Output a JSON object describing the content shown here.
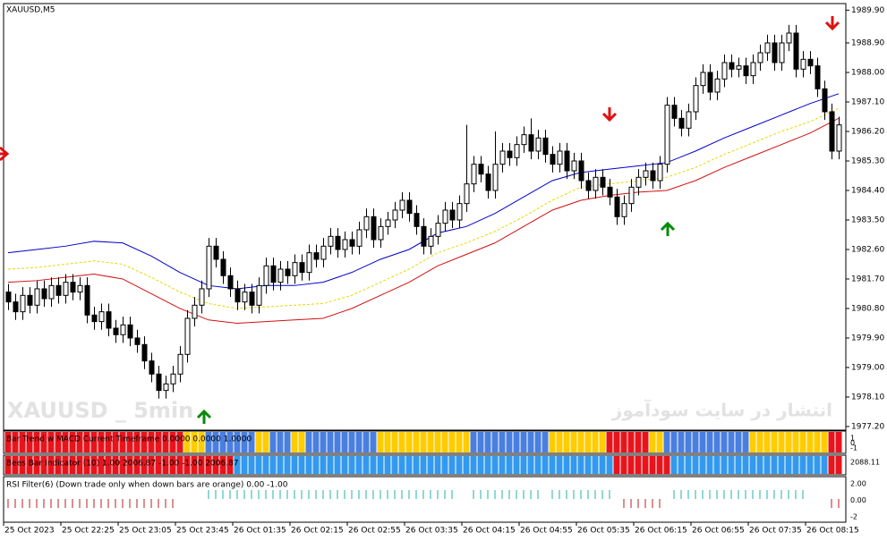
{
  "chart_data": {
    "type": "candlestick",
    "title": "XAUUSD,M5",
    "watermarks": [
      "XAUUSD _ 5min",
      "انتشار در سایت سودآموز"
    ],
    "ylim": [
      1977.09,
      1990.1
    ],
    "yticks": [
      {
        "value": 1989.9,
        "label": "1989.90"
      },
      {
        "value": 1988.9,
        "label": "1988.90"
      },
      {
        "value": 1988.0,
        "label": "1988.00"
      },
      {
        "value": 1987.1,
        "label": "1987.10"
      },
      {
        "value": 1986.2,
        "label": "1986.20"
      },
      {
        "value": 1985.3,
        "label": "1985.30"
      },
      {
        "value": 1984.4,
        "label": "1984.40"
      },
      {
        "value": 1983.5,
        "label": "1983.50"
      },
      {
        "value": 1982.6,
        "label": "1982.60"
      },
      {
        "value": 1981.7,
        "label": "1981.70"
      },
      {
        "value": 1980.8,
        "label": "1980.80"
      },
      {
        "value": 1979.9,
        "label": "1979.90"
      },
      {
        "value": 1979.0,
        "label": "1979.00"
      },
      {
        "value": 1978.1,
        "label": "1978.10"
      },
      {
        "value": 1977.2,
        "label": "1977.20"
      }
    ],
    "xlabels": [
      "25 Oct 2023",
      "25 Oct 22:25",
      "25 Oct 23:05",
      "25 Oct 23:45",
      "26 Oct 01:35",
      "26 Oct 02:15",
      "26 Oct 02:55",
      "26 Oct 03:35",
      "26 Oct 04:15",
      "26 Oct 04:55",
      "26 Oct 05:35",
      "26 Oct 06:15",
      "26 Oct 06:55",
      "26 Oct 07:35",
      "26 Oct 08:15"
    ],
    "ohlc": [
      [
        1981.3,
        1981.55,
        1980.75,
        1981.0
      ],
      [
        1981.0,
        1981.25,
        1980.45,
        1980.7
      ],
      [
        1980.7,
        1981.45,
        1980.45,
        1981.2
      ],
      [
        1981.2,
        1981.45,
        1980.65,
        1980.9
      ],
      [
        1980.9,
        1981.65,
        1980.65,
        1981.4
      ],
      [
        1981.4,
        1981.65,
        1980.85,
        1981.1
      ],
      [
        1981.1,
        1981.75,
        1980.85,
        1981.5
      ],
      [
        1981.5,
        1981.75,
        1980.95,
        1981.2
      ],
      [
        1981.2,
        1981.85,
        1980.95,
        1981.6
      ],
      [
        1981.6,
        1981.85,
        1981.05,
        1981.3
      ],
      [
        1981.3,
        1981.75,
        1981.05,
        1981.5
      ],
      [
        1981.5,
        1981.75,
        1980.35,
        1980.6
      ],
      [
        1980.6,
        1980.85,
        1980.15,
        1980.4
      ],
      [
        1980.4,
        1980.95,
        1980.15,
        1980.7
      ],
      [
        1980.7,
        1980.95,
        1979.95,
        1980.2
      ],
      [
        1980.2,
        1980.45,
        1979.75,
        1980.0
      ],
      [
        1980.0,
        1980.55,
        1979.75,
        1980.3
      ],
      [
        1980.3,
        1980.55,
        1979.65,
        1979.9
      ],
      [
        1979.9,
        1980.15,
        1979.45,
        1979.7
      ],
      [
        1979.7,
        1979.95,
        1978.95,
        1979.2
      ],
      [
        1979.2,
        1979.45,
        1978.55,
        1978.8
      ],
      [
        1978.8,
        1979.05,
        1978.05,
        1978.3
      ],
      [
        1978.3,
        1978.75,
        1978.05,
        1978.5
      ],
      [
        1978.5,
        1979.05,
        1978.25,
        1978.8
      ],
      [
        1978.8,
        1979.65,
        1978.55,
        1979.4
      ],
      [
        1979.4,
        1980.75,
        1979.15,
        1980.5
      ],
      [
        1980.5,
        1981.15,
        1980.25,
        1980.9
      ],
      [
        1980.9,
        1981.65,
        1980.65,
        1981.4
      ],
      [
        1981.4,
        1982.95,
        1981.15,
        1982.7
      ],
      [
        1982.7,
        1982.95,
        1982.05,
        1982.3
      ],
      [
        1982.3,
        1982.55,
        1981.55,
        1981.8
      ],
      [
        1981.8,
        1982.05,
        1981.15,
        1981.4
      ],
      [
        1981.4,
        1981.65,
        1980.75,
        1981.0
      ],
      [
        1981.0,
        1981.55,
        1980.75,
        1981.3
      ],
      [
        1981.3,
        1981.55,
        1980.65,
        1980.9
      ],
      [
        1980.9,
        1981.75,
        1980.65,
        1981.5
      ],
      [
        1981.5,
        1982.35,
        1981.25,
        1982.1
      ],
      [
        1982.1,
        1982.35,
        1981.35,
        1981.6
      ],
      [
        1981.6,
        1982.25,
        1981.35,
        1982.0
      ],
      [
        1982.0,
        1982.25,
        1981.55,
        1981.8
      ],
      [
        1981.8,
        1982.45,
        1981.55,
        1982.2
      ],
      [
        1982.2,
        1982.45,
        1981.65,
        1981.9
      ],
      [
        1981.9,
        1982.75,
        1981.65,
        1982.5
      ],
      [
        1982.5,
        1982.75,
        1982.05,
        1982.3
      ],
      [
        1982.3,
        1982.95,
        1982.05,
        1982.7
      ],
      [
        1982.7,
        1983.25,
        1982.45,
        1983.0
      ],
      [
        1983.0,
        1983.25,
        1982.35,
        1982.6
      ],
      [
        1982.6,
        1983.15,
        1982.35,
        1982.9
      ],
      [
        1982.9,
        1983.15,
        1982.45,
        1982.7
      ],
      [
        1982.7,
        1983.45,
        1982.45,
        1983.2
      ],
      [
        1983.2,
        1983.85,
        1982.95,
        1983.6
      ],
      [
        1983.6,
        1983.85,
        1982.65,
        1982.9
      ],
      [
        1982.9,
        1983.55,
        1982.65,
        1983.3
      ],
      [
        1983.3,
        1983.75,
        1983.05,
        1983.5
      ],
      [
        1983.5,
        1984.05,
        1983.25,
        1983.8
      ],
      [
        1983.8,
        1984.35,
        1983.55,
        1984.1
      ],
      [
        1984.1,
        1984.35,
        1983.45,
        1983.7
      ],
      [
        1983.7,
        1983.95,
        1983.05,
        1983.3
      ],
      [
        1983.3,
        1983.55,
        1982.45,
        1982.7
      ],
      [
        1982.7,
        1983.25,
        1982.45,
        1983.0
      ],
      [
        1983.0,
        1983.65,
        1982.75,
        1983.4
      ],
      [
        1983.4,
        1984.05,
        1983.15,
        1983.8
      ],
      [
        1983.8,
        1984.05,
        1983.25,
        1983.5
      ],
      [
        1983.5,
        1984.25,
        1983.25,
        1984.0
      ],
      [
        1984.0,
        1986.4,
        1983.75,
        1984.6
      ],
      [
        1984.6,
        1985.45,
        1984.35,
        1985.2
      ],
      [
        1985.2,
        1985.45,
        1984.65,
        1984.9
      ],
      [
        1984.9,
        1985.15,
        1984.15,
        1984.4
      ],
      [
        1984.4,
        1986.2,
        1984.15,
        1985.2
      ],
      [
        1985.2,
        1985.85,
        1984.95,
        1985.6
      ],
      [
        1985.6,
        1985.85,
        1985.15,
        1985.4
      ],
      [
        1985.4,
        1986.05,
        1985.15,
        1985.8
      ],
      [
        1985.8,
        1986.35,
        1985.55,
        1986.1
      ],
      [
        1986.1,
        1986.6,
        1985.35,
        1985.6
      ],
      [
        1985.6,
        1986.25,
        1985.35,
        1986.0
      ],
      [
        1986.0,
        1986.25,
        1985.25,
        1985.5
      ],
      [
        1985.5,
        1985.75,
        1984.95,
        1985.2
      ],
      [
        1985.2,
        1985.85,
        1984.95,
        1985.6
      ],
      [
        1985.6,
        1985.85,
        1984.75,
        1985.0
      ],
      [
        1985.0,
        1985.55,
        1984.75,
        1985.3
      ],
      [
        1985.3,
        1985.55,
        1984.45,
        1984.7
      ],
      [
        1984.7,
        1984.95,
        1984.15,
        1984.4
      ],
      [
        1984.4,
        1985.05,
        1984.15,
        1984.8
      ],
      [
        1984.8,
        1985.05,
        1984.25,
        1984.5
      ],
      [
        1984.5,
        1984.75,
        1983.95,
        1984.2
      ],
      [
        1984.2,
        1984.45,
        1983.35,
        1983.6
      ],
      [
        1983.6,
        1984.25,
        1983.35,
        1984.0
      ],
      [
        1984.0,
        1984.75,
        1983.75,
        1984.5
      ],
      [
        1984.5,
        1985.05,
        1984.25,
        1984.8
      ],
      [
        1984.8,
        1985.25,
        1984.55,
        1985.0
      ],
      [
        1985.0,
        1985.25,
        1984.45,
        1984.7
      ],
      [
        1984.7,
        1985.45,
        1984.45,
        1985.2
      ],
      [
        1985.2,
        1987.25,
        1984.95,
        1987.0
      ],
      [
        1987.0,
        1987.25,
        1986.35,
        1986.6
      ],
      [
        1986.6,
        1986.85,
        1986.05,
        1986.3
      ],
      [
        1986.3,
        1987.05,
        1986.05,
        1986.8
      ],
      [
        1986.8,
        1987.85,
        1986.55,
        1987.6
      ],
      [
        1987.6,
        1988.25,
        1987.35,
        1988.0
      ],
      [
        1988.0,
        1988.25,
        1987.15,
        1987.4
      ],
      [
        1987.4,
        1988.05,
        1987.15,
        1987.8
      ],
      [
        1987.8,
        1988.55,
        1987.55,
        1988.3
      ],
      [
        1988.3,
        1988.55,
        1987.85,
        1988.1
      ],
      [
        1988.1,
        1988.45,
        1987.85,
        1988.2
      ],
      [
        1988.2,
        1988.45,
        1987.65,
        1987.9
      ],
      [
        1987.9,
        1988.55,
        1987.65,
        1988.3
      ],
      [
        1988.3,
        1988.85,
        1988.05,
        1988.6
      ],
      [
        1988.6,
        1989.15,
        1988.35,
        1988.9
      ],
      [
        1988.9,
        1989.15,
        1988.05,
        1988.3
      ],
      [
        1988.3,
        1989.15,
        1988.05,
        1988.9
      ],
      [
        1988.9,
        1989.45,
        1988.65,
        1989.2
      ],
      [
        1989.2,
        1989.45,
        1987.85,
        1988.1
      ],
      [
        1988.1,
        1988.65,
        1987.85,
        1988.4
      ],
      [
        1988.4,
        1988.65,
        1987.95,
        1988.2
      ],
      [
        1988.2,
        1988.45,
        1987.25,
        1987.5
      ],
      [
        1987.5,
        1987.75,
        1986.55,
        1986.8
      ],
      [
        1986.8,
        1987.05,
        1985.35,
        1985.6
      ],
      [
        1985.6,
        1986.65,
        1985.35,
        1986.4
      ]
    ],
    "series": [
      {
        "color": "#0000cd",
        "dashed": false,
        "values": [
          1982.5,
          1982.6,
          1982.7,
          1982.85,
          1982.8,
          1982.4,
          1981.9,
          1981.5,
          1981.4,
          1981.5,
          1981.5,
          1981.6,
          1981.9,
          1982.3,
          1982.6,
          1983.1,
          1983.3,
          1983.7,
          1984.2,
          1984.7,
          1984.95,
          1985.05,
          1985.15,
          1985.25,
          1985.6,
          1986.0,
          1986.35,
          1986.7,
          1987.05,
          1987.35
        ]
      },
      {
        "color": "#e8d800",
        "dashed": true,
        "values": [
          1982.0,
          1982.05,
          1982.15,
          1982.25,
          1982.15,
          1981.75,
          1981.3,
          1980.95,
          1980.8,
          1980.85,
          1980.9,
          1980.95,
          1981.2,
          1981.6,
          1982.0,
          1982.5,
          1982.8,
          1983.15,
          1983.6,
          1984.1,
          1984.5,
          1984.6,
          1984.7,
          1984.8,
          1985.1,
          1985.5,
          1985.85,
          1986.2,
          1986.5,
          1986.9
        ]
      },
      {
        "color": "#d01010",
        "dashed": false,
        "values": [
          1981.6,
          1981.65,
          1981.75,
          1981.85,
          1981.7,
          1981.25,
          1980.8,
          1980.45,
          1980.35,
          1980.4,
          1980.45,
          1980.5,
          1980.8,
          1981.2,
          1981.6,
          1982.1,
          1982.45,
          1982.8,
          1983.3,
          1983.8,
          1984.1,
          1984.25,
          1984.35,
          1984.4,
          1984.7,
          1985.1,
          1985.45,
          1985.8,
          1986.15,
          1986.6
        ]
      }
    ],
    "panels": [
      {
        "label": "Bar Trend w MACD  Current Timeframe 0.0000 0.0000 1.0000",
        "ticks": [
          1,
          0,
          -1
        ],
        "segments": [
          {
            "color": "#e8141c",
            "bars": 25
          },
          {
            "color": "#ffcc00",
            "bars": 3
          },
          {
            "color": "#4a7fe0",
            "bars": 7
          },
          {
            "color": "#ffcc00",
            "bars": 2
          },
          {
            "color": "#4a7fe0",
            "bars": 3
          },
          {
            "color": "#ffcc00",
            "bars": 2
          },
          {
            "color": "#4a7fe0",
            "bars": 10
          },
          {
            "color": "#ffcc00",
            "bars": 13
          },
          {
            "color": "#4a7fe0",
            "bars": 11
          },
          {
            "color": "#ffcc00",
            "bars": 8
          },
          {
            "color": "#e8141c",
            "bars": 6
          },
          {
            "color": "#ffcc00",
            "bars": 2
          },
          {
            "color": "#4a7fe0",
            "bars": 12
          },
          {
            "color": "#ffcc00",
            "bars": 11
          },
          {
            "color": "#e8141c",
            "bars": 2
          }
        ]
      },
      {
        "label": "Bees Bar Indicator (10) 1.00 2006.87 -1.00 -1.00 2006.87",
        "ticks": [
          "2088.11"
        ],
        "segments": [
          {
            "color": "#e8141c",
            "bars": 32
          },
          {
            "color": "#3399ee",
            "bars": 53
          },
          {
            "color": "#e8141c",
            "bars": 8
          },
          {
            "color": "#3399ee",
            "bars": 22
          },
          {
            "color": "#e8141c",
            "bars": 2
          }
        ]
      },
      {
        "label": "RSI Filter(6)  (Down trade only when down bars are orange) 0.00 -1.00",
        "ticks": [
          {
            "value": 2,
            "label": "2.00"
          },
          {
            "value": 0,
            "label": "0.00"
          },
          -2
        ],
        "segments": [
          {
            "color": "#b22222",
            "signal": -1,
            "bars": 24
          },
          {
            "color": null,
            "signal": null,
            "bars": 4
          },
          {
            "color": "#20b2aa",
            "signal": 1,
            "bars": 35
          },
          {
            "color": null,
            "signal": null,
            "bars": 2
          },
          {
            "color": "#20b2aa",
            "signal": 1,
            "bars": 10
          },
          {
            "color": null,
            "signal": null,
            "bars": 1
          },
          {
            "color": "#20b2aa",
            "signal": 1,
            "bars": 9
          },
          {
            "color": null,
            "signal": null,
            "bars": 1
          },
          {
            "color": "#b22222",
            "signal": -1,
            "bars": 6
          },
          {
            "color": null,
            "signal": null,
            "bars": 1
          },
          {
            "color": "#20b2aa",
            "signal": 1,
            "bars": 19
          },
          {
            "color": null,
            "signal": null,
            "bars": 3
          },
          {
            "color": "#b22222",
            "signal": -1,
            "bars": 2
          }
        ]
      }
    ]
  }
}
